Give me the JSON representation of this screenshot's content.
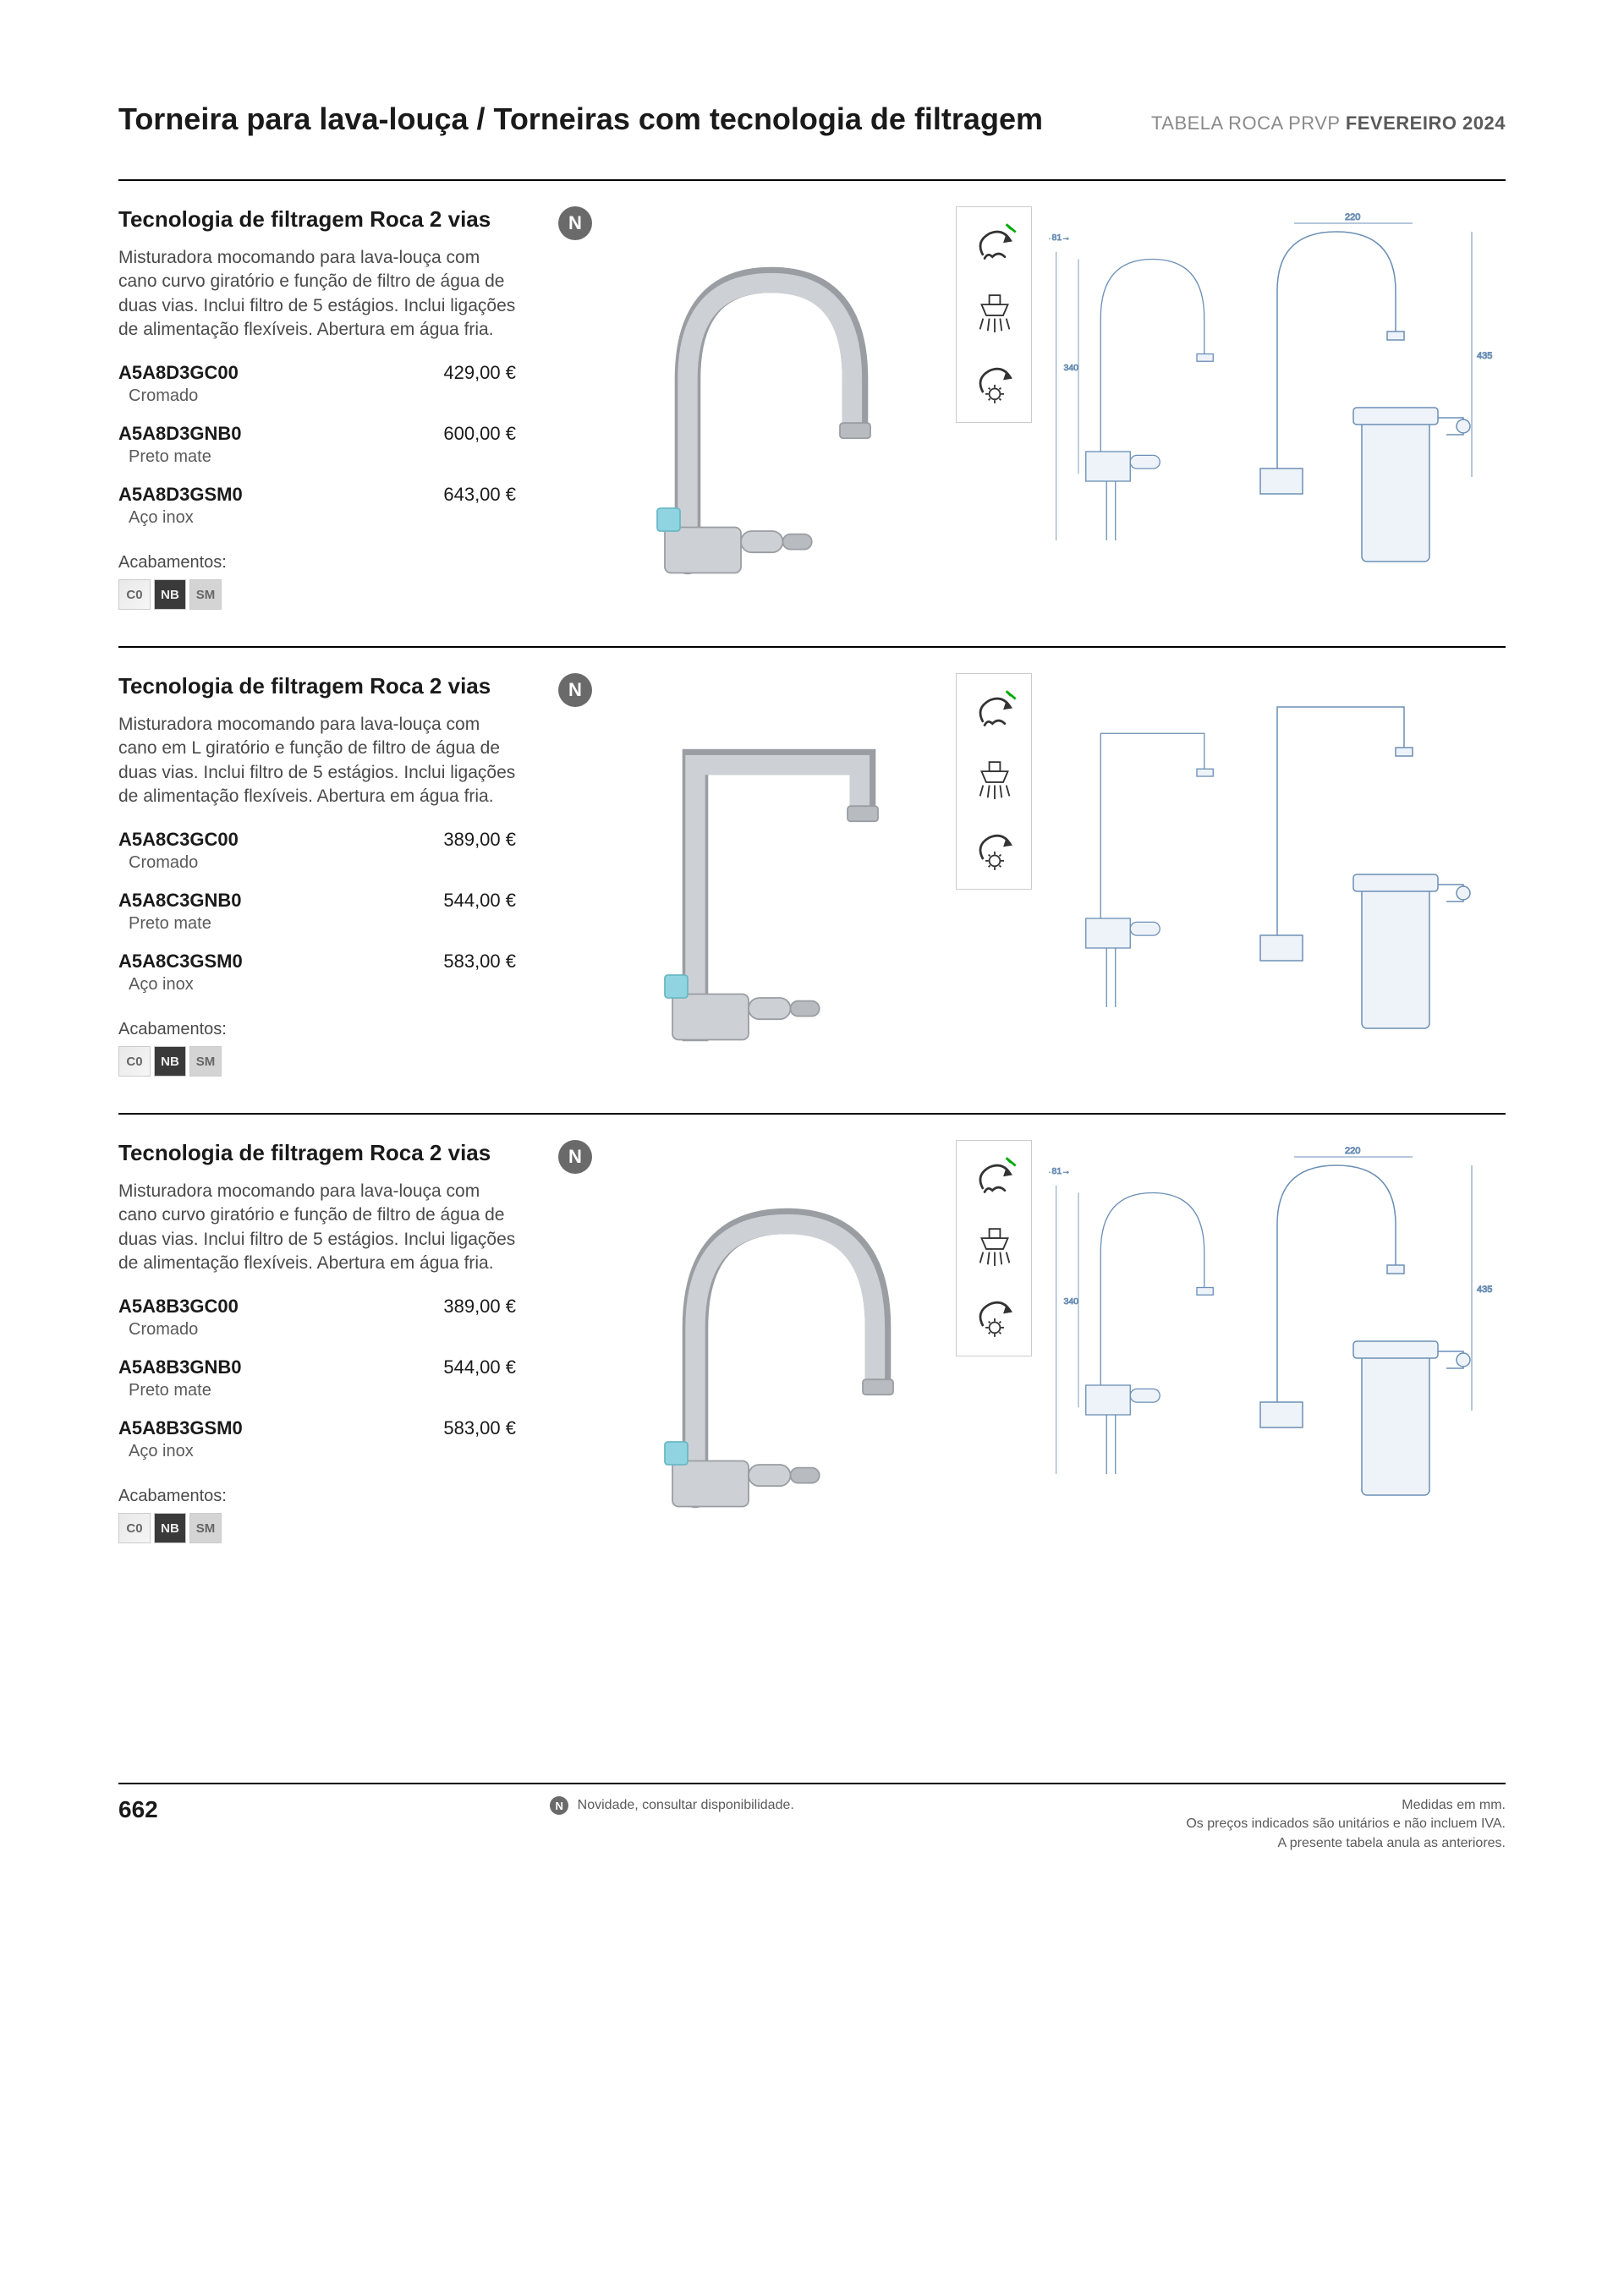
{
  "header": {
    "title": "Torneira para lava-louça / Torneiras com tecnologia de filtragem",
    "right_prefix": "TABELA ROCA PRVP ",
    "right_bold": "FEVEREIRO 2024"
  },
  "badge_label": "N",
  "finishes_label": "Acabamentos:",
  "swatch_labels": {
    "c0": "C0",
    "nb": "NB",
    "sm": "SM"
  },
  "products": [
    {
      "title": "Tecnologia de filtragem Roca 2 vias",
      "description": "Misturadora mocomando para lava-louça com cano curvo giratório e função de filtro de água de duas vias. Inclui filtro de 5 estágios. Inclui ligações de alimentação flexíveis. Abertura em água fria.",
      "spout_style": "curved-tall",
      "variants": [
        {
          "code": "A5A8D3GC00",
          "finish": "Cromado",
          "price": "429,00 €"
        },
        {
          "code": "A5A8D3GNB0",
          "finish": "Preto mate",
          "price": "600,00 €"
        },
        {
          "code": "A5A8D3GSM0",
          "finish": "Aço inox",
          "price": "643,00 €"
        }
      ]
    },
    {
      "title": "Tecnologia de filtragem Roca 2 vias",
      "description": "Misturadora mocomando para lava-louça com cano em L giratório e função de filtro de água de duas vias. Inclui filtro de 5 estágios. Inclui ligações de alimentação flexíveis. Abertura em água fria.",
      "spout_style": "square-L",
      "variants": [
        {
          "code": "A5A8C3GC00",
          "finish": "Cromado",
          "price": "389,00 €"
        },
        {
          "code": "A5A8C3GNB0",
          "finish": "Preto mate",
          "price": "544,00 €"
        },
        {
          "code": "A5A8C3GSM0",
          "finish": "Aço inox",
          "price": "583,00 €"
        }
      ]
    },
    {
      "title": "Tecnologia de filtragem Roca 2 vias",
      "description": "Misturadora mocomando para lava-louça com cano curvo giratório e função de filtro de água de duas vias. Inclui filtro de 5 estágios. Inclui ligações de alimentação flexíveis. Abertura em água fria.",
      "spout_style": "curved-short",
      "variants": [
        {
          "code": "A5A8B3GC00",
          "finish": "Cromado",
          "price": "389,00 €"
        },
        {
          "code": "A5A8B3GNB0",
          "finish": "Preto mate",
          "price": "544,00 €"
        },
        {
          "code": "A5A8B3GSM0",
          "finish": "Aço inox",
          "price": "583,00 €"
        }
      ]
    }
  ],
  "colors": {
    "tap_body": "#b8bcc0",
    "tap_outline": "#9a9ea2",
    "tap_accent": "#8fd4e0",
    "tech_line": "#6b8fb5",
    "tech_fill": "#eef3f9",
    "text_dark": "#1a1a1a",
    "text_grey": "#5a5a5a",
    "rule": "#000000"
  },
  "footer": {
    "page": "662",
    "novidade": "Novidade, consultar disponibilidade.",
    "right1": "Medidas em mm.",
    "right2": "Os preços indicados são unitários e não incluem IVA.",
    "right3": "A presente tabela anula as anteriores."
  }
}
